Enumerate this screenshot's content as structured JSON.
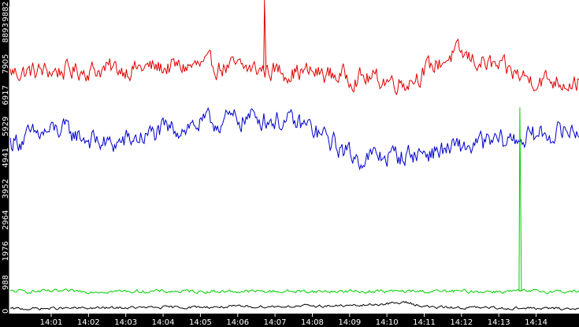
{
  "colors": {
    "background": "#ffffff",
    "axis_strip": "#000000",
    "text": "#ffffff",
    "series_red": "#e00000",
    "series_blue": "#0000cc",
    "series_green": "#00d000",
    "series_black": "#000000"
  },
  "chart_data": {
    "type": "line",
    "title": "",
    "xlabel": "",
    "ylabel": "",
    "grid": false,
    "legend": "none",
    "y_ticks": [
      "0",
      "988",
      "1976",
      "2964",
      "3952",
      "4941",
      "5929",
      "6917",
      "7905",
      "8893",
      "9882"
    ],
    "ylim": [
      0,
      9882
    ],
    "x_ticks": [
      "14:01",
      "14:02",
      "14:03",
      "14:04",
      "14:05",
      "14:06",
      "14:07",
      "14:08",
      "14:09",
      "14:10",
      "14:11",
      "14:12",
      "14:13",
      "14:14"
    ],
    "xlim_minutes": [
      14.13,
      14.245
    ],
    "series": [
      {
        "color": "#e00000",
        "keypoints": [
          [
            14.13,
            7600
          ],
          [
            14.15,
            7700
          ],
          [
            14.17,
            7800
          ],
          [
            14.19,
            7600
          ],
          [
            14.21,
            7300
          ],
          [
            14.22,
            8200
          ],
          [
            14.235,
            7400
          ],
          [
            14.245,
            7300
          ]
        ],
        "noise": 520,
        "spikes": [
          [
            14.375,
            9882
          ]
        ]
      },
      {
        "color": "#0000cc",
        "keypoints": [
          [
            14.13,
            5400
          ],
          [
            14.14,
            5800
          ],
          [
            14.15,
            5300
          ],
          [
            14.16,
            5700
          ],
          [
            14.165,
            5900
          ],
          [
            14.18,
            6200
          ],
          [
            14.19,
            5900
          ],
          [
            14.2,
            4900
          ],
          [
            14.21,
            5000
          ],
          [
            14.22,
            5200
          ],
          [
            14.24,
            5700
          ],
          [
            14.245,
            5800
          ]
        ],
        "noise": 560,
        "spikes": []
      },
      {
        "color": "#00d000",
        "keypoints": [
          [
            14.13,
            700
          ],
          [
            14.245,
            700
          ]
        ],
        "noise": 90,
        "spikes": [
          [
            14.13,
            6500
          ]
        ]
      },
      {
        "color": "#000000",
        "keypoints": [
          [
            14.13,
            150
          ],
          [
            14.2,
            250
          ],
          [
            14.21,
            350
          ],
          [
            14.215,
            200
          ],
          [
            14.245,
            150
          ]
        ],
        "noise": 70,
        "spikes": []
      }
    ]
  }
}
